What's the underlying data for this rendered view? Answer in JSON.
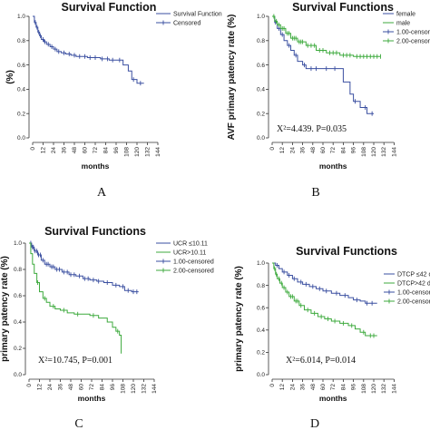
{
  "figure": {
    "panel_labels": [
      "A",
      "B",
      "C",
      "D"
    ]
  },
  "chart_data": [
    {
      "type": "line",
      "title": "Survival Function",
      "ylabel": "(%)",
      "xlabel": "months",
      "x_ticks": [
        "0",
        "12",
        "24",
        "36",
        "48",
        "60",
        "72",
        "84",
        "96",
        "108",
        "120",
        "132",
        "144"
      ],
      "y_ticks": [
        "0.0",
        "0.2",
        "0.4",
        "0.6",
        "0.8",
        "1.0"
      ],
      "xlim": [
        0,
        144
      ],
      "ylim": [
        0,
        1.0
      ],
      "legend_position": "top-right",
      "legend": [
        "Survival Function",
        "Censored"
      ],
      "annotation": "",
      "series": [
        {
          "name": "Survival Function",
          "color": "#3a4fa0",
          "x": [
            0,
            2,
            4,
            6,
            8,
            10,
            13,
            16,
            20,
            24,
            28,
            33,
            38,
            44,
            50,
            56,
            63,
            70,
            78,
            88,
            96,
            104,
            110,
            114,
            120,
            128
          ],
          "y": [
            1.0,
            0.95,
            0.91,
            0.87,
            0.84,
            0.81,
            0.79,
            0.77,
            0.75,
            0.73,
            0.71,
            0.7,
            0.69,
            0.68,
            0.67,
            0.67,
            0.66,
            0.66,
            0.65,
            0.64,
            0.64,
            0.6,
            0.55,
            0.48,
            0.45,
            0.45
          ],
          "censored_x": [
            3,
            5,
            7,
            9,
            12,
            14,
            18,
            22,
            26,
            30,
            36,
            42,
            48,
            54,
            60,
            66,
            72,
            80,
            86,
            92,
            100,
            116,
            124
          ]
        }
      ]
    },
    {
      "type": "line",
      "title": "Survival Functions",
      "ylabel": "AVF primary patency rate (%)",
      "xlabel": "months",
      "x_ticks": [
        "0",
        "12",
        "24",
        "36",
        "48",
        "60",
        "72",
        "84",
        "96",
        "108",
        "120",
        "132",
        "144"
      ],
      "y_ticks": [
        "0.0",
        "0.2",
        "0.4",
        "0.6",
        "0.8",
        "1.0"
      ],
      "xlim": [
        0,
        144
      ],
      "ylim": [
        0,
        1.0
      ],
      "legend_position": "top-right",
      "legend": [
        "female",
        "male",
        "1.00-censored",
        "2.00-censored"
      ],
      "annotation": "X²=4.439.    P=0.035",
      "series": [
        {
          "name": "female",
          "color": "#3a4fa0",
          "x": [
            0,
            3,
            6,
            10,
            14,
            18,
            22,
            26,
            30,
            36,
            40,
            48,
            54,
            60,
            68,
            78,
            84,
            92,
            96,
            104,
            112,
            120
          ],
          "y": [
            1.0,
            0.95,
            0.9,
            0.85,
            0.8,
            0.76,
            0.72,
            0.68,
            0.63,
            0.6,
            0.57,
            0.57,
            0.57,
            0.57,
            0.57,
            0.57,
            0.46,
            0.36,
            0.3,
            0.25,
            0.2,
            0.2
          ],
          "censored_x": [
            4,
            8,
            12,
            20,
            28,
            38,
            46,
            52,
            64,
            74,
            98,
            110,
            118
          ]
        },
        {
          "name": "male",
          "color": "#3daa3d",
          "x": [
            0,
            3,
            6,
            10,
            16,
            22,
            30,
            40,
            52,
            64,
            80,
            96,
            128
          ],
          "y": [
            1.0,
            0.96,
            0.93,
            0.9,
            0.86,
            0.82,
            0.79,
            0.76,
            0.72,
            0.7,
            0.68,
            0.67,
            0.67
          ],
          "censored_x": [
            2,
            5,
            8,
            12,
            14,
            18,
            20,
            24,
            26,
            28,
            32,
            34,
            36,
            42,
            46,
            50,
            56,
            60,
            68,
            72,
            76,
            84,
            88,
            92,
            100,
            104,
            108,
            112,
            116,
            120,
            124,
            128
          ]
        }
      ]
    },
    {
      "type": "line",
      "title": "Survival Functions",
      "ylabel": "primary patency rate (%)",
      "xlabel": "months",
      "x_ticks": [
        "0",
        "12",
        "24",
        "36",
        "48",
        "60",
        "72",
        "84",
        "96",
        "108",
        "120",
        "132",
        "144"
      ],
      "y_ticks": [
        "0.0",
        "0.2",
        "0.4",
        "0.6",
        "0.8",
        "1.0"
      ],
      "xlim": [
        0,
        144
      ],
      "ylim": [
        0,
        1.0
      ],
      "legend_position": "top-right",
      "legend": [
        "UCR ≤10.11",
        "UCR>10.11",
        "1.00-censored",
        "2.00-censored"
      ],
      "annotation": "X²=10.745,    P=0.001",
      "series": [
        {
          "name": "UCR ≤10.11",
          "color": "#3a4fa0",
          "x": [
            0,
            3,
            6,
            10,
            14,
            18,
            24,
            30,
            38,
            46,
            54,
            62,
            70,
            78,
            86,
            96,
            104,
            110,
            118,
            126
          ],
          "y": [
            1.0,
            0.97,
            0.94,
            0.91,
            0.87,
            0.84,
            0.82,
            0.8,
            0.78,
            0.76,
            0.75,
            0.73,
            0.72,
            0.71,
            0.7,
            0.68,
            0.67,
            0.64,
            0.63,
            0.63
          ],
          "censored_x": [
            2,
            4,
            5,
            7,
            9,
            11,
            13,
            16,
            20,
            22,
            26,
            28,
            32,
            35,
            40,
            44,
            48,
            52,
            58,
            64,
            68,
            74,
            80,
            90,
            100,
            108,
            114,
            120,
            124
          ]
        },
        {
          "name": "UCR>10.11",
          "color": "#3daa3d",
          "x": [
            0,
            2,
            4,
            6,
            9,
            12,
            16,
            20,
            24,
            30,
            36,
            44,
            52,
            60,
            70,
            80,
            90,
            96,
            100,
            104,
            106
          ],
          "y": [
            1.0,
            0.92,
            0.84,
            0.77,
            0.7,
            0.63,
            0.58,
            0.55,
            0.52,
            0.5,
            0.49,
            0.47,
            0.46,
            0.46,
            0.45,
            0.43,
            0.4,
            0.36,
            0.33,
            0.3,
            0.16
          ],
          "censored_x": [
            10,
            18,
            28,
            40,
            56,
            74,
            102
          ]
        }
      ]
    },
    {
      "type": "line",
      "title": "Survival Functions",
      "ylabel": "primary patency rate (%)",
      "xlabel": "months",
      "x_ticks": [
        "0",
        "12",
        "24",
        "36",
        "48",
        "60",
        "72",
        "84",
        "96",
        "108",
        "120",
        "132",
        "144"
      ],
      "y_ticks": [
        "0.0",
        "0.2",
        "0.4",
        "0.6",
        "0.8",
        "1.0"
      ],
      "xlim": [
        0,
        144
      ],
      "ylim": [
        0,
        1.0
      ],
      "legend_position": "top-right",
      "legend": [
        "DTCP ≤42 di",
        "DTCP>42 da",
        "1.00-censor",
        "2.00-censor"
      ],
      "annotation": "X²=6.014,    P=0.014",
      "series": [
        {
          "name": "DTCP ≤42 di",
          "color": "#3a4fa0",
          "x": [
            0,
            4,
            8,
            12,
            18,
            24,
            30,
            36,
            44,
            52,
            60,
            70,
            80,
            90,
            96,
            104,
            110,
            124
          ],
          "y": [
            1.0,
            0.98,
            0.95,
            0.92,
            0.89,
            0.86,
            0.83,
            0.81,
            0.79,
            0.77,
            0.75,
            0.73,
            0.71,
            0.69,
            0.67,
            0.66,
            0.64,
            0.64
          ],
          "censored_x": [
            6,
            14,
            20,
            26,
            34,
            40,
            48,
            56,
            64,
            76,
            86,
            100,
            112,
            118
          ]
        },
        {
          "name": "DTCP>42 da",
          "color": "#3daa3d",
          "x": [
            0,
            2,
            4,
            6,
            9,
            12,
            16,
            20,
            26,
            32,
            38,
            46,
            54,
            62,
            70,
            80,
            90,
            98,
            104,
            110,
            124
          ],
          "y": [
            1.0,
            0.95,
            0.9,
            0.86,
            0.82,
            0.78,
            0.74,
            0.7,
            0.66,
            0.62,
            0.58,
            0.55,
            0.52,
            0.5,
            0.48,
            0.46,
            0.44,
            0.41,
            0.38,
            0.35,
            0.35
          ],
          "censored_x": [
            3,
            5,
            8,
            11,
            14,
            18,
            22,
            24,
            28,
            30,
            34,
            42,
            50,
            58,
            66,
            74,
            84,
            94,
            108,
            116,
            120
          ]
        }
      ]
    }
  ]
}
